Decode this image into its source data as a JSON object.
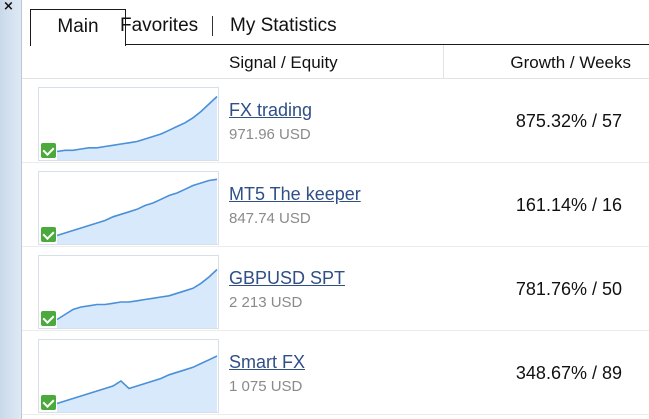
{
  "window": {
    "close_glyph": "×"
  },
  "tabs": [
    {
      "label": "Main",
      "active": true
    },
    {
      "label": "Favorites",
      "active": false
    },
    {
      "label": "My Statistics",
      "active": false
    }
  ],
  "table": {
    "headers": {
      "signal": "Signal / Equity",
      "growth": "Growth / Weeks"
    },
    "rows": [
      {
        "name": "FX trading",
        "equity": "971.96 USD",
        "growth": "875.32% / 57",
        "curve": [
          2,
          3,
          3,
          4,
          5,
          5,
          6,
          7,
          8,
          9,
          10,
          12,
          14,
          16,
          19,
          22,
          25,
          29,
          34,
          40,
          46
        ]
      },
      {
        "name": "MT5 The keeper",
        "equity": "847.74 USD",
        "growth": "161.14% / 16",
        "curve": [
          2,
          4,
          6,
          8,
          10,
          12,
          14,
          17,
          19,
          21,
          23,
          26,
          28,
          31,
          34,
          36,
          39,
          42,
          44,
          46,
          47
        ]
      },
      {
        "name": "GBPUSD SPT",
        "equity": "2 213 USD",
        "growth": "781.76% / 50",
        "curve": [
          2,
          6,
          10,
          12,
          13,
          14,
          14,
          15,
          16,
          16,
          17,
          18,
          19,
          20,
          21,
          23,
          25,
          27,
          31,
          36,
          42
        ]
      },
      {
        "name": "Smart FX",
        "equity": "1 075 USD",
        "growth": "348.67% / 89",
        "curve": [
          2,
          4,
          6,
          8,
          10,
          12,
          14,
          16,
          20,
          14,
          16,
          18,
          20,
          22,
          25,
          27,
          29,
          31,
          34,
          37,
          40
        ]
      }
    ]
  },
  "colors": {
    "line": "#4a90d9",
    "fill": "#d8e9fb",
    "link": "#2f4f86",
    "check": "#4caa3c"
  }
}
